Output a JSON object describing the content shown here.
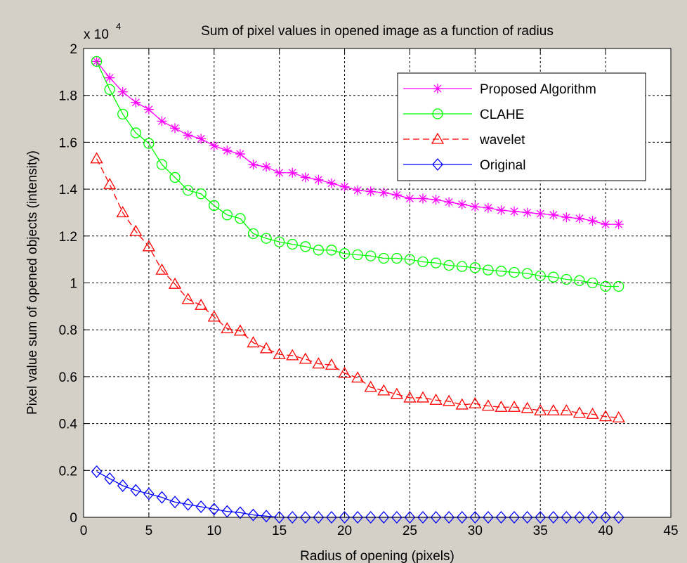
{
  "chart_data": {
    "type": "line",
    "title": "Sum of pixel values in opened image as a function of radius",
    "xlabel": "Radius of opening (pixels)",
    "ylabel": "Pixel value sum of opened objects (intensity)",
    "y_multiplier": {
      "base": "x 10",
      "exponent": "4"
    },
    "xlim": [
      0,
      45
    ],
    "ylim": [
      0,
      2
    ],
    "xticks": [
      0,
      5,
      10,
      15,
      20,
      25,
      30,
      35,
      40,
      45
    ],
    "yticks": [
      0,
      0.2,
      0.4,
      0.6,
      0.8,
      1,
      1.2,
      1.4,
      1.6,
      1.8,
      2
    ],
    "ytick_labels": [
      "0",
      "0.2",
      "0.4",
      "0.6",
      "0.8",
      "1",
      "1.2",
      "1.4",
      "1.6",
      "1.8",
      "2"
    ],
    "grid": true,
    "legend_position": "top-right",
    "x": [
      1,
      2,
      3,
      4,
      5,
      6,
      7,
      8,
      9,
      10,
      11,
      12,
      13,
      14,
      15,
      16,
      17,
      18,
      19,
      20,
      21,
      22,
      23,
      24,
      25,
      26,
      27,
      28,
      29,
      30,
      31,
      32,
      33,
      34,
      35,
      36,
      37,
      38,
      39,
      40,
      41
    ],
    "series": [
      {
        "name": "Proposed Algorithm",
        "color": "#ff00ff",
        "marker": "star",
        "dash": "solid",
        "values": [
          1.945,
          1.875,
          1.815,
          1.77,
          1.74,
          1.69,
          1.66,
          1.63,
          1.615,
          1.585,
          1.565,
          1.55,
          1.505,
          1.495,
          1.47,
          1.47,
          1.45,
          1.44,
          1.425,
          1.41,
          1.395,
          1.39,
          1.385,
          1.375,
          1.36,
          1.36,
          1.355,
          1.345,
          1.335,
          1.325,
          1.32,
          1.31,
          1.305,
          1.3,
          1.295,
          1.29,
          1.28,
          1.275,
          1.265,
          1.25,
          1.25
        ]
      },
      {
        "name": "CLAHE",
        "color": "#00ff00",
        "marker": "circle",
        "dash": "solid",
        "values": [
          1.945,
          1.825,
          1.72,
          1.64,
          1.595,
          1.505,
          1.45,
          1.395,
          1.38,
          1.33,
          1.29,
          1.275,
          1.21,
          1.19,
          1.175,
          1.165,
          1.155,
          1.14,
          1.14,
          1.125,
          1.12,
          1.115,
          1.105,
          1.105,
          1.1,
          1.09,
          1.085,
          1.075,
          1.07,
          1.065,
          1.055,
          1.05,
          1.045,
          1.04,
          1.03,
          1.025,
          1.015,
          1.01,
          1.0,
          0.985,
          0.985
        ]
      },
      {
        "name": "wavelet",
        "color": "#ff0000",
        "marker": "triangle",
        "dash": "dashed",
        "values": [
          1.53,
          1.42,
          1.3,
          1.22,
          1.155,
          1.055,
          0.995,
          0.93,
          0.905,
          0.855,
          0.805,
          0.795,
          0.745,
          0.72,
          0.695,
          0.69,
          0.675,
          0.655,
          0.65,
          0.615,
          0.595,
          0.555,
          0.54,
          0.525,
          0.51,
          0.51,
          0.5,
          0.495,
          0.48,
          0.485,
          0.475,
          0.47,
          0.47,
          0.465,
          0.455,
          0.455,
          0.455,
          0.445,
          0.44,
          0.43,
          0.425
        ]
      },
      {
        "name": "Original",
        "color": "#0000ff",
        "marker": "diamond",
        "dash": "solid",
        "values": [
          0.195,
          0.165,
          0.135,
          0.115,
          0.1,
          0.085,
          0.065,
          0.055,
          0.045,
          0.035,
          0.025,
          0.02,
          0.01,
          0.005,
          0,
          0,
          0,
          0,
          0,
          0,
          0,
          0,
          0,
          0,
          0,
          0,
          0,
          0,
          0,
          0,
          0,
          0,
          0,
          0,
          0,
          0,
          0,
          0,
          0,
          0,
          0
        ]
      }
    ]
  }
}
